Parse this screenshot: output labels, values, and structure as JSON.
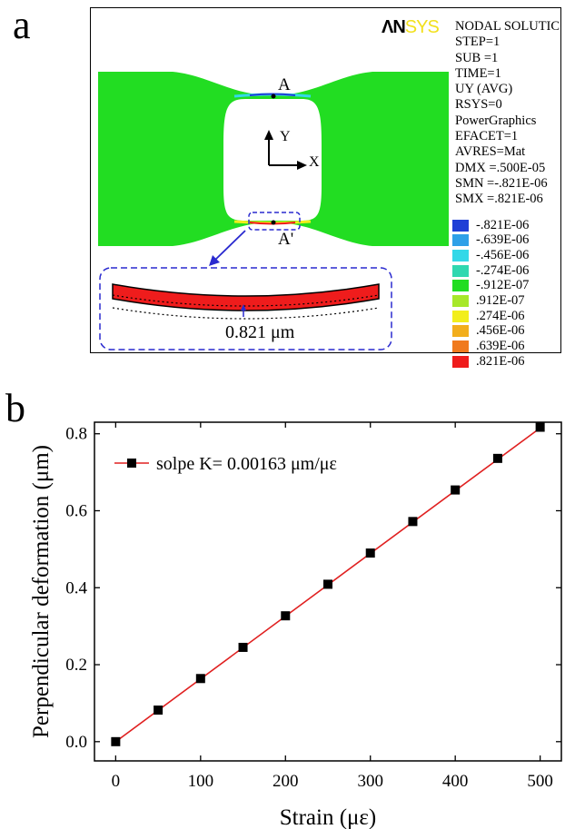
{
  "panel_a": {
    "letter": "a",
    "logo": {
      "part1": "ΛN",
      "part2": "SYS"
    },
    "info_lines": [
      "NODAL SOLUTIC",
      "STEP=1",
      "SUB =1",
      "TIME=1",
      "UY      (AVG)",
      "RSYS=0",
      "PowerGraphics",
      "EFACET=1",
      "AVRES=Mat",
      "DMX =.500E-05",
      "SMN =-.821E-06",
      "SMX =.821E-06"
    ],
    "legend": [
      {
        "label": "-.821E-06",
        "color": "#1f3fd6"
      },
      {
        "label": "-.639E-06",
        "color": "#2ea0e8"
      },
      {
        "label": "-.456E-06",
        "color": "#33d8e8"
      },
      {
        "label": "-.274E-06",
        "color": "#2fd8b0"
      },
      {
        "label": "-.912E-07",
        "color": "#22dd22"
      },
      {
        "label": ".912E-07",
        "color": "#a7e82a"
      },
      {
        "label": ".274E-06",
        "color": "#f2ee1c"
      },
      {
        "label": ".456E-06",
        "color": "#f2ae1c"
      },
      {
        "label": ".639E-06",
        "color": "#f07a1e"
      },
      {
        "label": ".821E-06",
        "color": "#ef1c1c"
      }
    ],
    "point_a_label": "A",
    "point_a2_label": "A'",
    "axis_y_label": "Y",
    "axis_x_label": "X",
    "inset_value": "0.821 μm",
    "body_color": "#22dd22"
  },
  "panel_b": {
    "letter": "b"
  },
  "chart_data": {
    "type": "line",
    "xlabel": "Strain (με)",
    "ylabel": "Perpendicular deformation (μm)",
    "xlim": [
      -25,
      525
    ],
    "ylim": [
      -0.05,
      0.83
    ],
    "xticks": [
      0,
      100,
      200,
      300,
      400,
      500
    ],
    "yticks": [
      0.0,
      0.2,
      0.4,
      0.6,
      0.8
    ],
    "ytick_labels": [
      "0.0",
      "0.2",
      "0.4",
      "0.6",
      "0.8"
    ],
    "legend": "top-left",
    "grid": false,
    "series": [
      {
        "name": "solpe K= 0.00163 μm/με",
        "x": [
          0,
          50,
          100,
          150,
          200,
          250,
          300,
          350,
          400,
          450,
          500
        ],
        "values": [
          0.0,
          0.082,
          0.164,
          0.245,
          0.327,
          0.409,
          0.49,
          0.572,
          0.654,
          0.736,
          0.817
        ],
        "marker_color": "#000000",
        "line_color": "#e02020",
        "fit": {
          "slope": 0.00163,
          "intercept": 0
        }
      }
    ]
  }
}
